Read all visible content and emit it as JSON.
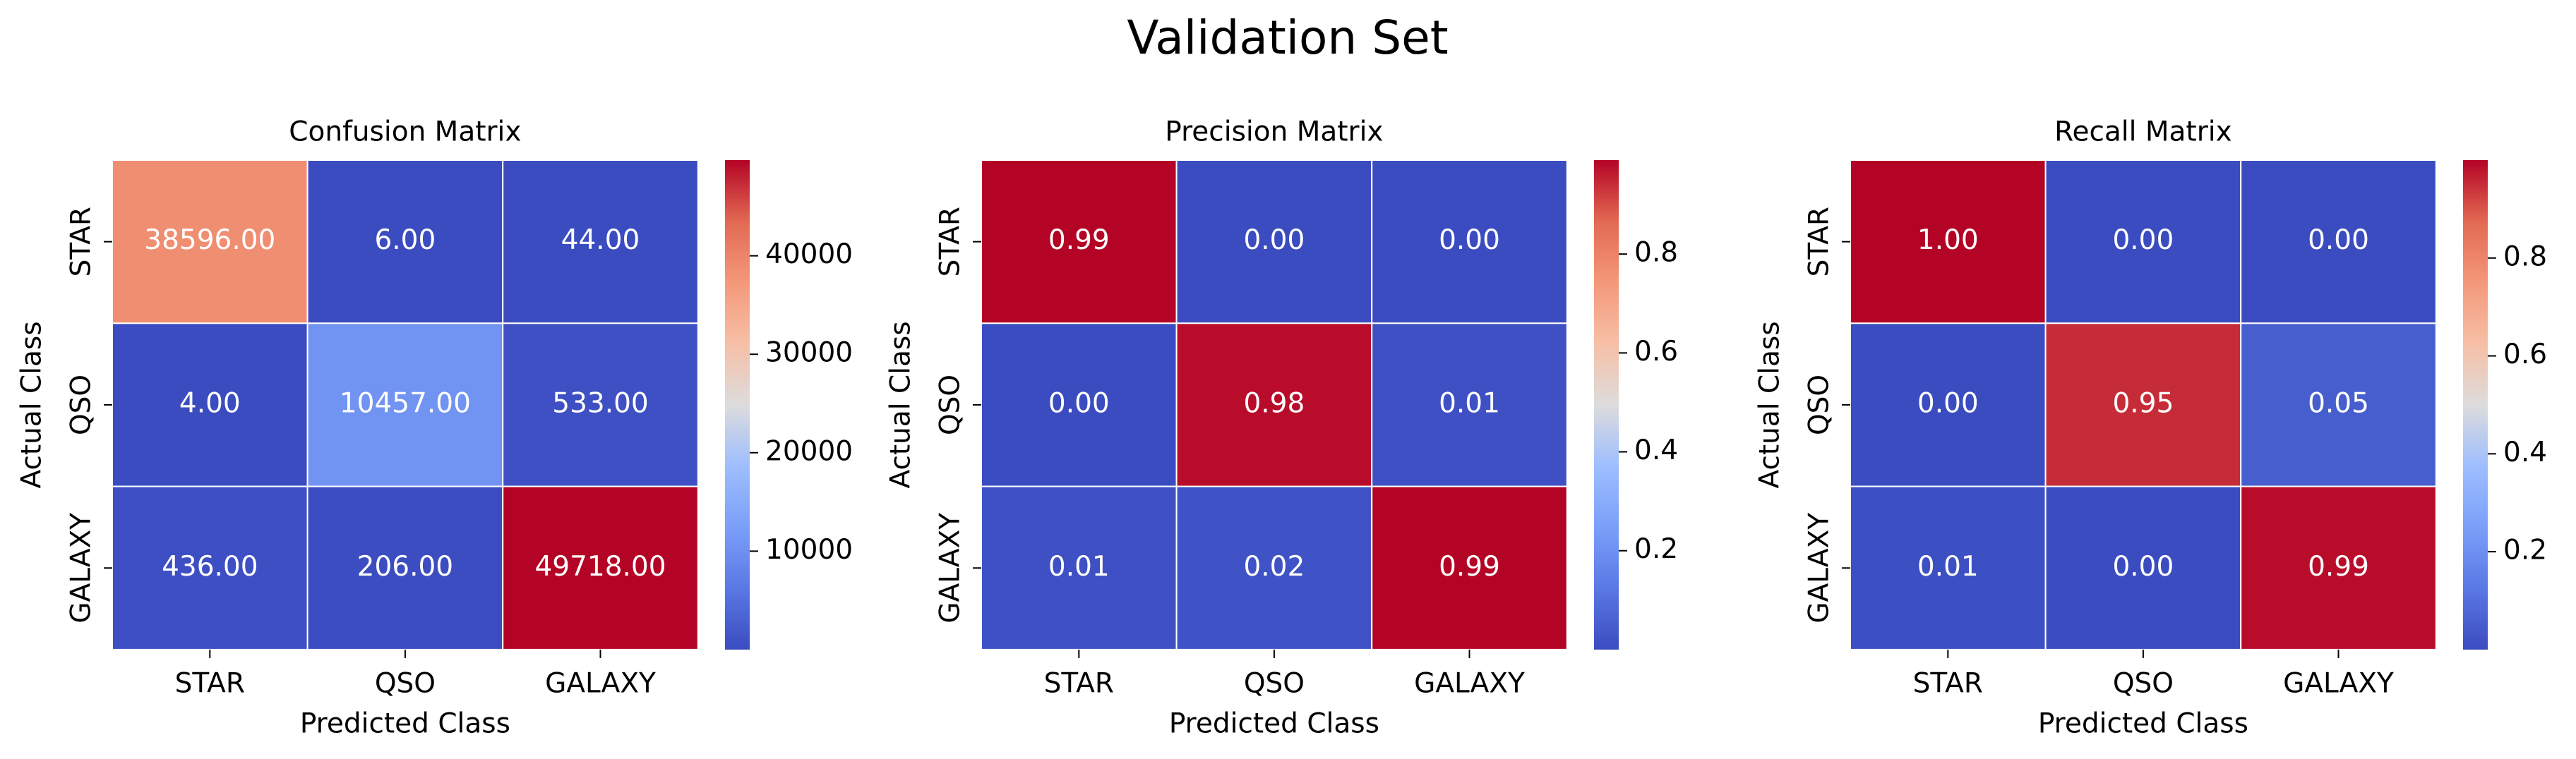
{
  "figure": {
    "suptitle": "Validation Set"
  },
  "chart_data": [
    {
      "type": "heatmap",
      "title": "Confusion Matrix",
      "xlabel": "Predicted Class",
      "ylabel": "Actual Class",
      "x_categories": [
        "STAR",
        "QSO",
        "GALAXY"
      ],
      "y_categories": [
        "STAR",
        "QSO",
        "GALAXY"
      ],
      "values": [
        [
          38596,
          6,
          44
        ],
        [
          4,
          10457,
          533
        ],
        [
          436,
          206,
          49718
        ]
      ],
      "value_labels": [
        [
          "38596.00",
          "6.00",
          "44.00"
        ],
        [
          "4.00",
          "10457.00",
          "533.00"
        ],
        [
          "436.00",
          "206.00",
          "49718.00"
        ]
      ],
      "colormap": "coolwarm",
      "vmin": 4,
      "vmax": 49718,
      "colorbar_ticks": [
        10000,
        20000,
        30000,
        40000
      ],
      "colorbar_tick_labels": [
        "10000",
        "20000",
        "30000",
        "40000"
      ]
    },
    {
      "type": "heatmap",
      "title": "Precision Matrix",
      "xlabel": "Predicted Class",
      "ylabel": "Actual Class",
      "x_categories": [
        "STAR",
        "QSO",
        "GALAXY"
      ],
      "y_categories": [
        "STAR",
        "QSO",
        "GALAXY"
      ],
      "values": [
        [
          0.99,
          0.0,
          0.0
        ],
        [
          0.0,
          0.98,
          0.01
        ],
        [
          0.01,
          0.02,
          0.99
        ]
      ],
      "value_labels": [
        [
          "0.99",
          "0.00",
          "0.00"
        ],
        [
          "0.00",
          "0.98",
          "0.01"
        ],
        [
          "0.01",
          "0.02",
          "0.99"
        ]
      ],
      "colormap": "coolwarm",
      "vmin": 0.0,
      "vmax": 0.99,
      "colorbar_ticks": [
        0.2,
        0.4,
        0.6,
        0.8
      ],
      "colorbar_tick_labels": [
        "0.2",
        "0.4",
        "0.6",
        "0.8"
      ]
    },
    {
      "type": "heatmap",
      "title": "Recall Matrix",
      "xlabel": "Predicted Class",
      "ylabel": "Actual Class",
      "x_categories": [
        "STAR",
        "QSO",
        "GALAXY"
      ],
      "y_categories": [
        "STAR",
        "QSO",
        "GALAXY"
      ],
      "values": [
        [
          1.0,
          0.0,
          0.0
        ],
        [
          0.0,
          0.95,
          0.05
        ],
        [
          0.01,
          0.0,
          0.99
        ]
      ],
      "value_labels": [
        [
          "1.00",
          "0.00",
          "0.00"
        ],
        [
          "0.00",
          "0.95",
          "0.05"
        ],
        [
          "0.01",
          "0.00",
          "0.99"
        ]
      ],
      "colormap": "coolwarm",
      "vmin": 0.0,
      "vmax": 1.0,
      "colorbar_ticks": [
        0.2,
        0.4,
        0.6,
        0.8
      ],
      "colorbar_tick_labels": [
        "0.2",
        "0.4",
        "0.6",
        "0.8"
      ]
    }
  ]
}
